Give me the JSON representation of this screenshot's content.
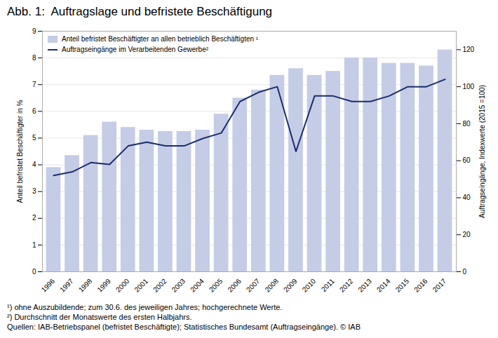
{
  "chart_data": {
    "type": "bar",
    "title": "Abb. 1:  Auftragslage und befristete Beschäftigung",
    "ylabel": "Anteil befristet Beschäftigter in %",
    "y2label": "Auftragseingänge, Indexwerte (2015 =100)",
    "categories": [
      "1996",
      "1997",
      "1998",
      "1999",
      "2000",
      "2001",
      "2002",
      "2003",
      "2004",
      "2005",
      "2006",
      "2007",
      "2008",
      "2009",
      "2010",
      "2011",
      "2012",
      "2013",
      "2014",
      "2015",
      "2016",
      "2017"
    ],
    "series": [
      {
        "name": "Anteil befristet Beschäftigter an allen betrieblich Beschäftigten ¹",
        "type": "bar",
        "color": "#c5cce6",
        "values": [
          3.9,
          4.35,
          5.1,
          5.6,
          5.4,
          5.3,
          5.25,
          5.25,
          5.3,
          5.9,
          6.5,
          6.8,
          7.35,
          7.6,
          7.35,
          7.5,
          8.0,
          8.0,
          7.8,
          7.8,
          7.7,
          8.3
        ]
      },
      {
        "name": "Auftragseingänge im Verarbeitenden Gewerbe²",
        "type": "line",
        "color": "#1a2e6e",
        "axis": "y2",
        "values": [
          52,
          54,
          59,
          58,
          68,
          70,
          68,
          68,
          72,
          75,
          92,
          97,
          100,
          65,
          95,
          95,
          92,
          92,
          95,
          100,
          100,
          104
        ]
      }
    ],
    "ylim": [
      0,
      9
    ],
    "yticks": [
      0,
      1,
      2,
      3,
      4,
      5,
      6,
      7,
      8,
      9
    ],
    "y2lim": [
      0,
      130
    ],
    "y2ticks": [
      0,
      20,
      40,
      60,
      80,
      100,
      120
    ],
    "grid": true,
    "legend": "upper left",
    "annotations": [
      "¹) ohne Auszubildende; zum 30.6. des jeweiligen Jahres; hochgerechnete Werte.",
      "²) Durchschnitt der Monatswerte des ersten Halbjahrs.",
      "Quellen: IAB-Betriebspanel (befristet Beschäftigte); Statistisches Bundesamt (Auftragseingänge). © IAB"
    ]
  }
}
